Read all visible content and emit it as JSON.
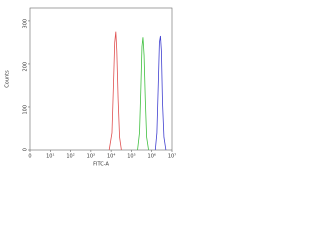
{
  "chart_data": {
    "type": "line",
    "y_label": "Counts",
    "x_label": "FITC-A",
    "xscale": "log",
    "xlim": [
      0,
      10000000
    ],
    "xticks": [
      0,
      {
        "value": 10,
        "label": "10¹"
      },
      {
        "value": 100,
        "label": "10²"
      },
      {
        "value": 1000,
        "label": "10³"
      },
      {
        "value": 10000,
        "label": "10⁴"
      },
      {
        "value": 100000,
        "label": "10⁵"
      },
      {
        "value": 1000000,
        "label": "10⁶"
      },
      {
        "value": 10000000,
        "label": "10⁷"
      }
    ],
    "ylim": [
      0,
      330
    ],
    "yticks": [
      0,
      100,
      200,
      300
    ],
    "series": [
      {
        "color": "#e05050",
        "x": [
          8000,
          11000,
          13000,
          15000,
          17000,
          19000,
          22000,
          26000,
          32000
        ],
        "values": [
          0,
          40,
          150,
          250,
          275,
          230,
          120,
          30,
          0
        ]
      },
      {
        "color": "#40c040",
        "x": [
          200000,
          250000,
          290000,
          330000,
          370000,
          420000,
          480000,
          560000,
          700000
        ],
        "values": [
          0,
          40,
          140,
          240,
          262,
          220,
          120,
          30,
          0
        ]
      },
      {
        "color": "#4040d0",
        "x": [
          1500000,
          1800000,
          2100000,
          2400000,
          2700000,
          3000000,
          3400000,
          4000000,
          5000000
        ],
        "values": [
          0,
          40,
          150,
          250,
          265,
          230,
          110,
          30,
          0
        ]
      }
    ]
  }
}
